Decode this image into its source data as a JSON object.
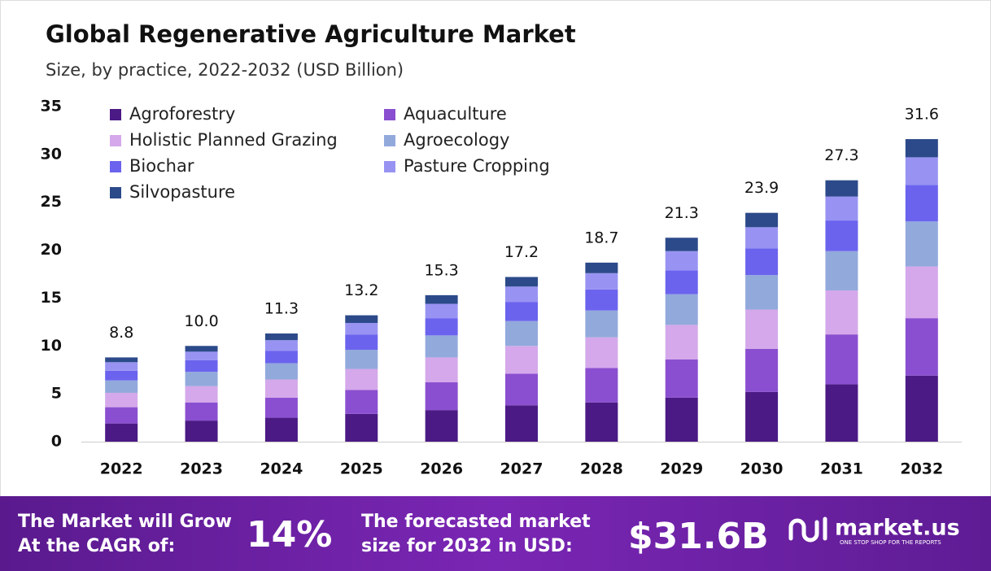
{
  "chart_data": {
    "type": "stacked_bar",
    "title": "Global Regenerative Agriculture Market",
    "subtitle": "Size, by practice, 2022-2032 (USD Billion)",
    "categories": [
      "2022",
      "2023",
      "2024",
      "2025",
      "2026",
      "2027",
      "2028",
      "2029",
      "2030",
      "2031",
      "2032"
    ],
    "series": [
      {
        "name": "Agroforestry",
        "color": "#4b1a85",
        "values": [
          1.9,
          2.2,
          2.5,
          2.9,
          3.3,
          3.8,
          4.1,
          4.6,
          5.2,
          6.0,
          6.9
        ]
      },
      {
        "name": "Aquaculture",
        "color": "#8a4fd0",
        "values": [
          1.7,
          1.9,
          2.1,
          2.5,
          2.9,
          3.3,
          3.6,
          4.0,
          4.5,
          5.2,
          6.0
        ]
      },
      {
        "name": "Holistic Planned Grazing",
        "color": "#d4a8ea",
        "values": [
          1.5,
          1.7,
          1.9,
          2.2,
          2.6,
          2.9,
          3.2,
          3.6,
          4.1,
          4.6,
          5.4
        ]
      },
      {
        "name": "Agroecology",
        "color": "#92a9dc",
        "values": [
          1.3,
          1.5,
          1.7,
          2.0,
          2.3,
          2.6,
          2.8,
          3.2,
          3.6,
          4.1,
          4.7
        ]
      },
      {
        "name": "Biochar",
        "color": "#6b63ee",
        "values": [
          1.0,
          1.2,
          1.3,
          1.6,
          1.8,
          2.0,
          2.2,
          2.5,
          2.8,
          3.2,
          3.8
        ]
      },
      {
        "name": "Pasture Cropping",
        "color": "#9893f2",
        "values": [
          0.9,
          0.9,
          1.1,
          1.2,
          1.5,
          1.6,
          1.7,
          2.0,
          2.2,
          2.5,
          2.9
        ]
      },
      {
        "name": "Silvopasture",
        "color": "#2c4a8a",
        "values": [
          0.5,
          0.6,
          0.7,
          0.8,
          0.9,
          1.0,
          1.1,
          1.4,
          1.5,
          1.7,
          1.9
        ]
      }
    ],
    "totals": [
      8.8,
      10.0,
      11.3,
      13.2,
      15.3,
      17.2,
      18.7,
      21.3,
      23.9,
      27.3,
      31.6
    ],
    "total_labels": [
      "8.8",
      "10.0",
      "11.3",
      "13.2",
      "15.3",
      "17.2",
      "18.7",
      "21.3",
      "23.9",
      "27.3",
      "31.6"
    ],
    "ylim": [
      0,
      35
    ],
    "yticks": [
      0,
      5,
      10,
      15,
      20,
      25,
      30,
      35
    ],
    "grid": false
  },
  "footer": {
    "cagr_text_1": "The Market will Grow",
    "cagr_text_2": "At the CAGR of:",
    "cagr": "14%",
    "forecast_text_1": "The forecasted market",
    "forecast_text_2": "size for 2032 in USD:",
    "forecast": "$31.6B",
    "brand": "market.us",
    "tagline": "ONE STOP SHOP FOR THE REPORTS"
  }
}
